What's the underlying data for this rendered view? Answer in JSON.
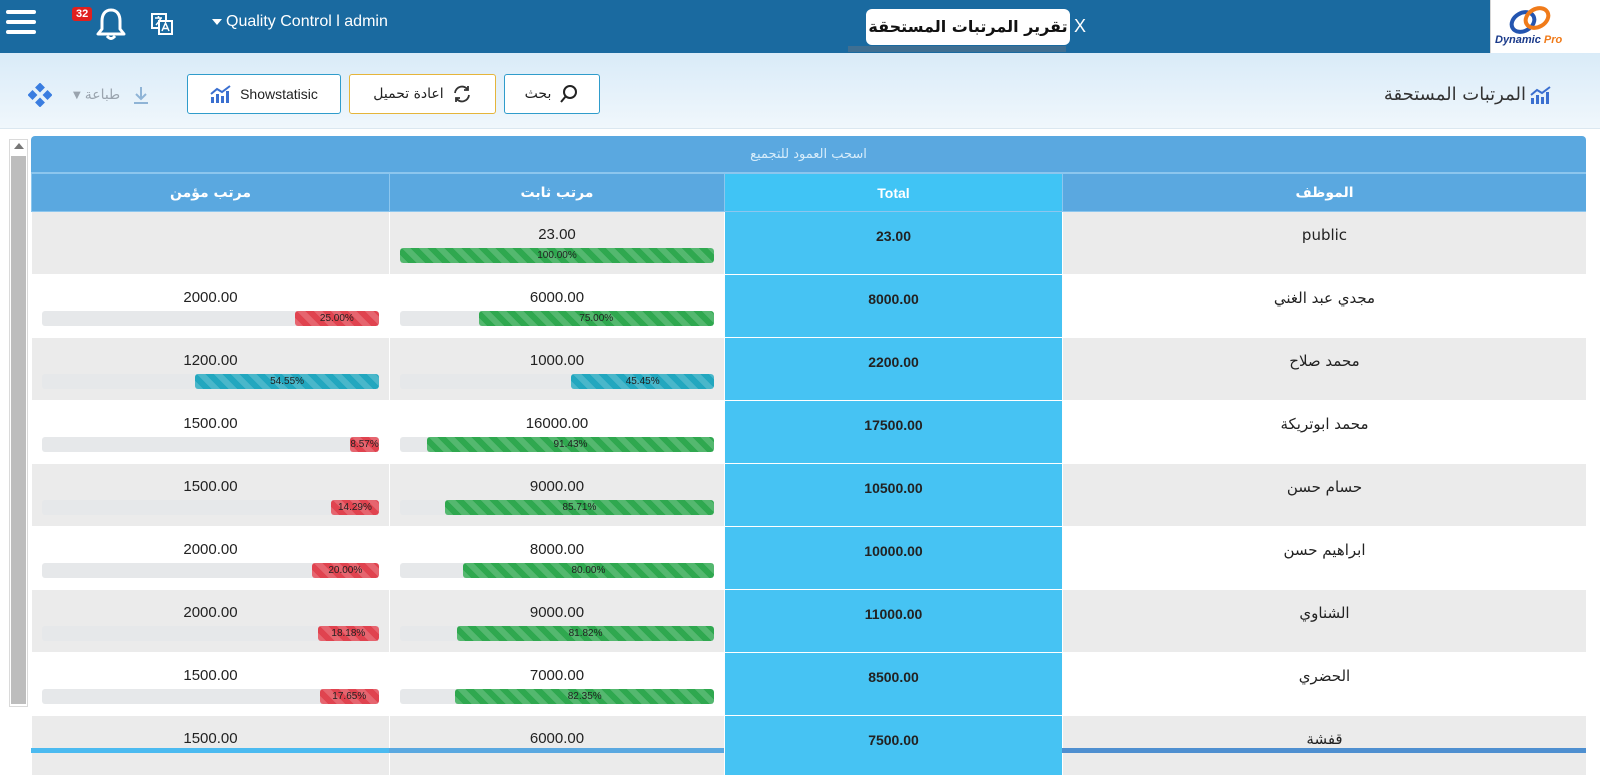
{
  "topbar": {
    "notification_count": "32",
    "user_label": "Quality Control l admin",
    "active_tab": "تقرير المرتبات المستحقة",
    "tab_close": "X",
    "logo_text_a": "Dynamic ",
    "logo_text_b": "Pro"
  },
  "toolbar": {
    "page_title": "المرتبات المستحقة",
    "search_label": "بحث",
    "reload_label": "اعادة تحميل",
    "stats_label": "Showstatisic",
    "print_label": "طباعة"
  },
  "grid": {
    "group_panel": "اسحب العمود للتجميع",
    "columns": {
      "employee": "الموظف",
      "total": "Total",
      "fixed": "مرتب ثابت",
      "insured": "مرتب مؤمن"
    },
    "rows": [
      {
        "employee": "public",
        "total": "23.00",
        "fixed": "23.00",
        "fixed_pct": "100.00%",
        "fixed_frac": 1.0,
        "fixed_color": "green",
        "insured": "",
        "insured_pct": "",
        "insured_frac": 0,
        "insured_color": "red"
      },
      {
        "employee": "مجدي عبد الغني",
        "total": "8000.00",
        "fixed": "6000.00",
        "fixed_pct": "75.00%",
        "fixed_frac": 0.75,
        "fixed_color": "green",
        "insured": "2000.00",
        "insured_pct": "25.00%",
        "insured_frac": 0.25,
        "insured_color": "red"
      },
      {
        "employee": "محمد صلاح",
        "total": "2200.00",
        "fixed": "1000.00",
        "fixed_pct": "45.45%",
        "fixed_frac": 0.4545,
        "fixed_color": "teal",
        "insured": "1200.00",
        "insured_pct": "54.55%",
        "insured_frac": 0.5455,
        "insured_color": "teal"
      },
      {
        "employee": "محمد ابوتريكة",
        "total": "17500.00",
        "fixed": "16000.00",
        "fixed_pct": "91.43%",
        "fixed_frac": 0.9143,
        "fixed_color": "green",
        "insured": "1500.00",
        "insured_pct": "8.57%",
        "insured_frac": 0.0857,
        "insured_color": "red"
      },
      {
        "employee": "حسام حسن",
        "total": "10500.00",
        "fixed": "9000.00",
        "fixed_pct": "85.71%",
        "fixed_frac": 0.8571,
        "fixed_color": "green",
        "insured": "1500.00",
        "insured_pct": "14.29%",
        "insured_frac": 0.1429,
        "insured_color": "red"
      },
      {
        "employee": "ابراهيم حسن",
        "total": "10000.00",
        "fixed": "8000.00",
        "fixed_pct": "80.00%",
        "fixed_frac": 0.8,
        "fixed_color": "green",
        "insured": "2000.00",
        "insured_pct": "20.00%",
        "insured_frac": 0.2,
        "insured_color": "red"
      },
      {
        "employee": "الشناوي",
        "total": "11000.00",
        "fixed": "9000.00",
        "fixed_pct": "81.82%",
        "fixed_frac": 0.8182,
        "fixed_color": "green",
        "insured": "2000.00",
        "insured_pct": "18.18%",
        "insured_frac": 0.1818,
        "insured_color": "red"
      },
      {
        "employee": "الحضري",
        "total": "8500.00",
        "fixed": "7000.00",
        "fixed_pct": "82.35%",
        "fixed_frac": 0.8235,
        "fixed_color": "green",
        "insured": "1500.00",
        "insured_pct": "17.65%",
        "insured_frac": 0.1765,
        "insured_color": "red"
      },
      {
        "employee": "قفشة",
        "total": "7500.00",
        "fixed": "6000.00",
        "fixed_pct": "",
        "fixed_frac": 0,
        "fixed_color": "green",
        "insured": "1500.00",
        "insured_pct": "",
        "insured_frac": 0,
        "insured_color": "red"
      }
    ]
  },
  "colors": {
    "topbar": "#1a6aa0",
    "header": "#5aa8e0",
    "total_column": "#46c3f3",
    "bar_green": "#2fa84f",
    "bar_red": "#e0434f",
    "bar_teal": "#22a7bf"
  }
}
